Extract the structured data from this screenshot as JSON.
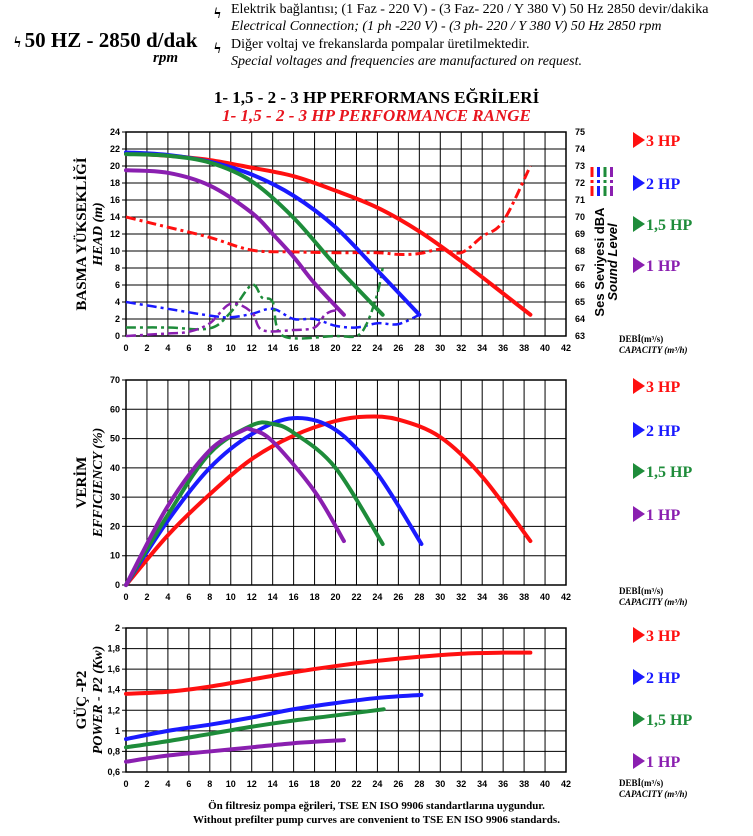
{
  "header": {
    "main": "50 HZ - 2850 d/dak",
    "rpm": "rpm",
    "notes": [
      "Elektrik bağlantısı; (1 Faz - 220 V) - (3 Faz-    220 / Y 380 V) 50 Hz 2850 devir/dakika",
      "Electrical Connection; (1 ph -220 V) - (3 ph-    220 / Y 380 V) 50 Hz 2850 rpm",
      "Diğer voltaj ve frekanslarda pompalar üretilmektedir.",
      "Special voltages and frequencies  are manufactured on request."
    ],
    "bolt_icon": "lightning-icon"
  },
  "title_tr": "1- 1,5 - 2 - 3 HP PERFORMANS EĞRİLERİ",
  "title_en": "1- 1,5 - 2 - 3 HP PERFORMANCE RANGE",
  "footer": [
    "Ön filtresiz pompa eğrileri, TSE EN ISO 9906 standartlarına uygundur.",
    "Without prefilter pump curves are convenient to TSE EN ISO 9906 standards."
  ],
  "colors": {
    "3HP": "#ff1010",
    "2HP": "#1a1aff",
    "1,5HP": "#1e8c3a",
    "1HP": "#8a1fb0"
  },
  "legend": [
    "3  HP",
    "2 HP",
    "1,5 HP",
    "1 HP"
  ],
  "xlabel": [
    "DEBİ(m³/s)",
    "CAPACITY (m³/h)"
  ],
  "chart_data": [
    {
      "type": "line",
      "title": "Head / Sound level",
      "ylabel": [
        "BASMA YÜKSEKLİĞİ",
        "HEAD (m)"
      ],
      "y2label": [
        "Ses Seviyesi dBA",
        "Sound Level"
      ],
      "xlim": [
        0,
        42
      ],
      "xticks": [
        0,
        2,
        4,
        6,
        8,
        10,
        12,
        14,
        16,
        18,
        20,
        22,
        24,
        26,
        28,
        30,
        32,
        34,
        36,
        38,
        40,
        42
      ],
      "ylim": [
        0,
        24
      ],
      "yticks": [
        0,
        2,
        4,
        6,
        8,
        10,
        12,
        14,
        16,
        18,
        20,
        22,
        24
      ],
      "y2lim": [
        63,
        75
      ],
      "y2ticks": [
        63,
        64,
        65,
        66,
        67,
        68,
        69,
        70,
        71,
        72,
        73,
        74,
        75
      ],
      "grid": true,
      "series": [
        {
          "name": "3 HP",
          "x": [
            0,
            4,
            8,
            12,
            16,
            20,
            24,
            28,
            32,
            36,
            38.6
          ],
          "y": [
            21.5,
            21.2,
            20.7,
            19.8,
            18.8,
            17.1,
            15.1,
            12.3,
            8.8,
            5,
            2.5
          ]
        },
        {
          "name": "2 HP",
          "x": [
            0,
            4,
            8,
            12,
            16,
            20,
            24,
            28
          ],
          "y": [
            21.6,
            21.3,
            20.5,
            19,
            16.5,
            12.8,
            7.7,
            2.5
          ]
        },
        {
          "name": "1,5 HP",
          "x": [
            0,
            4,
            8,
            12,
            16,
            20,
            24.5
          ],
          "y": [
            21.4,
            21.2,
            20.4,
            18.2,
            13.9,
            8.3,
            2.5
          ]
        },
        {
          "name": "1 HP",
          "x": [
            0,
            4,
            8,
            12,
            14,
            16,
            18,
            20.8
          ],
          "y": [
            19.5,
            19.2,
            17.7,
            14.5,
            12,
            9.3,
            6.2,
            2.5
          ]
        }
      ],
      "sound_series": [
        {
          "name": "3 HP",
          "x": [
            0,
            4,
            8,
            12,
            16,
            20,
            24,
            26,
            28,
            30,
            32,
            34,
            36,
            38.6
          ],
          "dBA": [
            70,
            69.4,
            68.8,
            68.05,
            67.95,
            67.9,
            67.9,
            67.8,
            67.85,
            68.1,
            67.9,
            68.85,
            69.75,
            73
          ]
        },
        {
          "name": "2 HP",
          "x": [
            0,
            4,
            8,
            10,
            12,
            14,
            16,
            18,
            20,
            22,
            24,
            26,
            28
          ],
          "dBA": [
            65,
            64.6,
            64.2,
            64.1,
            64.3,
            64.6,
            64,
            64,
            63.6,
            63.5,
            63.75,
            63.7,
            64.25
          ]
        },
        {
          "name": "1,5 HP",
          "x": [
            0,
            4,
            8,
            10,
            12,
            13,
            14,
            15,
            20,
            22,
            23,
            24,
            24.5
          ],
          "dBA": [
            63.5,
            63.5,
            63.45,
            64.4,
            66,
            65.25,
            65,
            63,
            63,
            63,
            63.75,
            65.5,
            67
          ]
        },
        {
          "name": "1 HP",
          "x": [
            0,
            4,
            6,
            8,
            10,
            12,
            13,
            16,
            18,
            19,
            20,
            20.8
          ],
          "dBA": [
            63,
            63.15,
            63.25,
            63.75,
            64.9,
            64.4,
            63.35,
            63.35,
            63.5,
            64.25,
            64.5,
            64.3
          ]
        }
      ]
    },
    {
      "type": "line",
      "title": "Efficiency",
      "ylabel": [
        "VERİM",
        "EFFICIENCY (%)"
      ],
      "xlim": [
        0,
        42
      ],
      "xticks": [
        0,
        2,
        4,
        6,
        8,
        10,
        12,
        14,
        16,
        18,
        20,
        22,
        24,
        26,
        28,
        30,
        32,
        34,
        36,
        38,
        40,
        42
      ],
      "ylim": [
        0,
        70
      ],
      "yticks": [
        0,
        10,
        20,
        30,
        40,
        50,
        60,
        70
      ],
      "grid": true,
      "series": [
        {
          "name": "3 HP",
          "x": [
            0,
            4,
            8,
            12,
            16,
            20,
            23,
            26,
            30,
            34,
            38.6
          ],
          "y": [
            0,
            17,
            31,
            43,
            51,
            56,
            57.5,
            56.5,
            50.5,
            37,
            15
          ]
        },
        {
          "name": "2 HP",
          "x": [
            0,
            4,
            8,
            12,
            16,
            20,
            24,
            28.2
          ],
          "y": [
            0,
            22,
            40,
            51.5,
            57,
            53,
            38,
            14
          ]
        },
        {
          "name": "1,5 HP",
          "x": [
            0,
            4,
            8,
            12,
            14,
            16,
            20,
            24.5
          ],
          "y": [
            0,
            24,
            45,
            54.5,
            55,
            52,
            40,
            14
          ]
        },
        {
          "name": "1 HP",
          "x": [
            0,
            4,
            8,
            11,
            12,
            14,
            18,
            20.8
          ],
          "y": [
            0,
            27,
            46,
            52.5,
            53,
            49,
            32,
            15
          ]
        }
      ]
    },
    {
      "type": "line",
      "title": "Power",
      "ylabel": [
        "GÜÇ -P2",
        "POWER - P2 (Kw)"
      ],
      "xlim": [
        0,
        42
      ],
      "xticks": [
        0,
        2,
        4,
        6,
        8,
        10,
        12,
        14,
        16,
        18,
        20,
        22,
        24,
        26,
        28,
        30,
        32,
        34,
        36,
        38,
        40,
        42
      ],
      "ylim": [
        0.6,
        2
      ],
      "yticks": [
        "0,6",
        "0,8",
        "1",
        "1,2",
        "1,4",
        "1,6",
        "1,8",
        "2"
      ],
      "grid": true,
      "series": [
        {
          "name": "3 HP",
          "x": [
            0,
            4,
            8,
            12,
            16,
            20,
            24,
            28,
            32,
            36,
            38.6
          ],
          "y": [
            1.36,
            1.38,
            1.43,
            1.5,
            1.57,
            1.63,
            1.68,
            1.72,
            1.75,
            1.76,
            1.76
          ]
        },
        {
          "name": "2 HP",
          "x": [
            0,
            4,
            8,
            12,
            16,
            20,
            24,
            28.2
          ],
          "y": [
            0.92,
            1,
            1.06,
            1.13,
            1.21,
            1.27,
            1.32,
            1.35
          ]
        },
        {
          "name": "1,5 HP",
          "x": [
            0,
            4,
            8,
            12,
            16,
            20,
            24.6
          ],
          "y": [
            0.84,
            0.9,
            0.97,
            1.04,
            1.1,
            1.15,
            1.21
          ]
        },
        {
          "name": "1 HP",
          "x": [
            0,
            4,
            8,
            12,
            16,
            20.8
          ],
          "y": [
            0.7,
            0.76,
            0.8,
            0.84,
            0.88,
            0.91
          ]
        }
      ]
    }
  ]
}
